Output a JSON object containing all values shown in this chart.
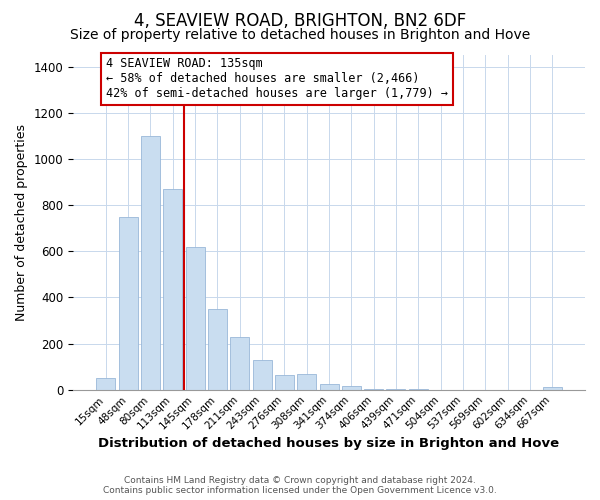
{
  "title": "4, SEAVIEW ROAD, BRIGHTON, BN2 6DF",
  "subtitle": "Size of property relative to detached houses in Brighton and Hove",
  "xlabel": "Distribution of detached houses by size in Brighton and Hove",
  "ylabel": "Number of detached properties",
  "bar_labels": [
    "15sqm",
    "48sqm",
    "80sqm",
    "113sqm",
    "145sqm",
    "178sqm",
    "211sqm",
    "243sqm",
    "276sqm",
    "308sqm",
    "341sqm",
    "374sqm",
    "406sqm",
    "439sqm",
    "471sqm",
    "504sqm",
    "537sqm",
    "569sqm",
    "602sqm",
    "634sqm",
    "667sqm"
  ],
  "bar_values": [
    50,
    750,
    1100,
    870,
    620,
    350,
    230,
    130,
    65,
    70,
    25,
    18,
    5,
    2,
    1,
    0,
    0,
    0,
    0,
    0,
    10
  ],
  "bar_color": "#c9ddf0",
  "bar_edge_color": "#9ab8d8",
  "vline_color": "#cc0000",
  "annotation_title": "4 SEAVIEW ROAD: 135sqm",
  "annotation_line1": "← 58% of detached houses are smaller (2,466)",
  "annotation_line2": "42% of semi-detached houses are larger (1,779) →",
  "annotation_box_color": "#ffffff",
  "annotation_box_edge": "#cc0000",
  "ylim": [
    0,
    1450
  ],
  "footer1": "Contains HM Land Registry data © Crown copyright and database right 2024.",
  "footer2": "Contains public sector information licensed under the Open Government Licence v3.0.",
  "bg_color": "#ffffff",
  "title_fontsize": 12,
  "subtitle_fontsize": 10
}
